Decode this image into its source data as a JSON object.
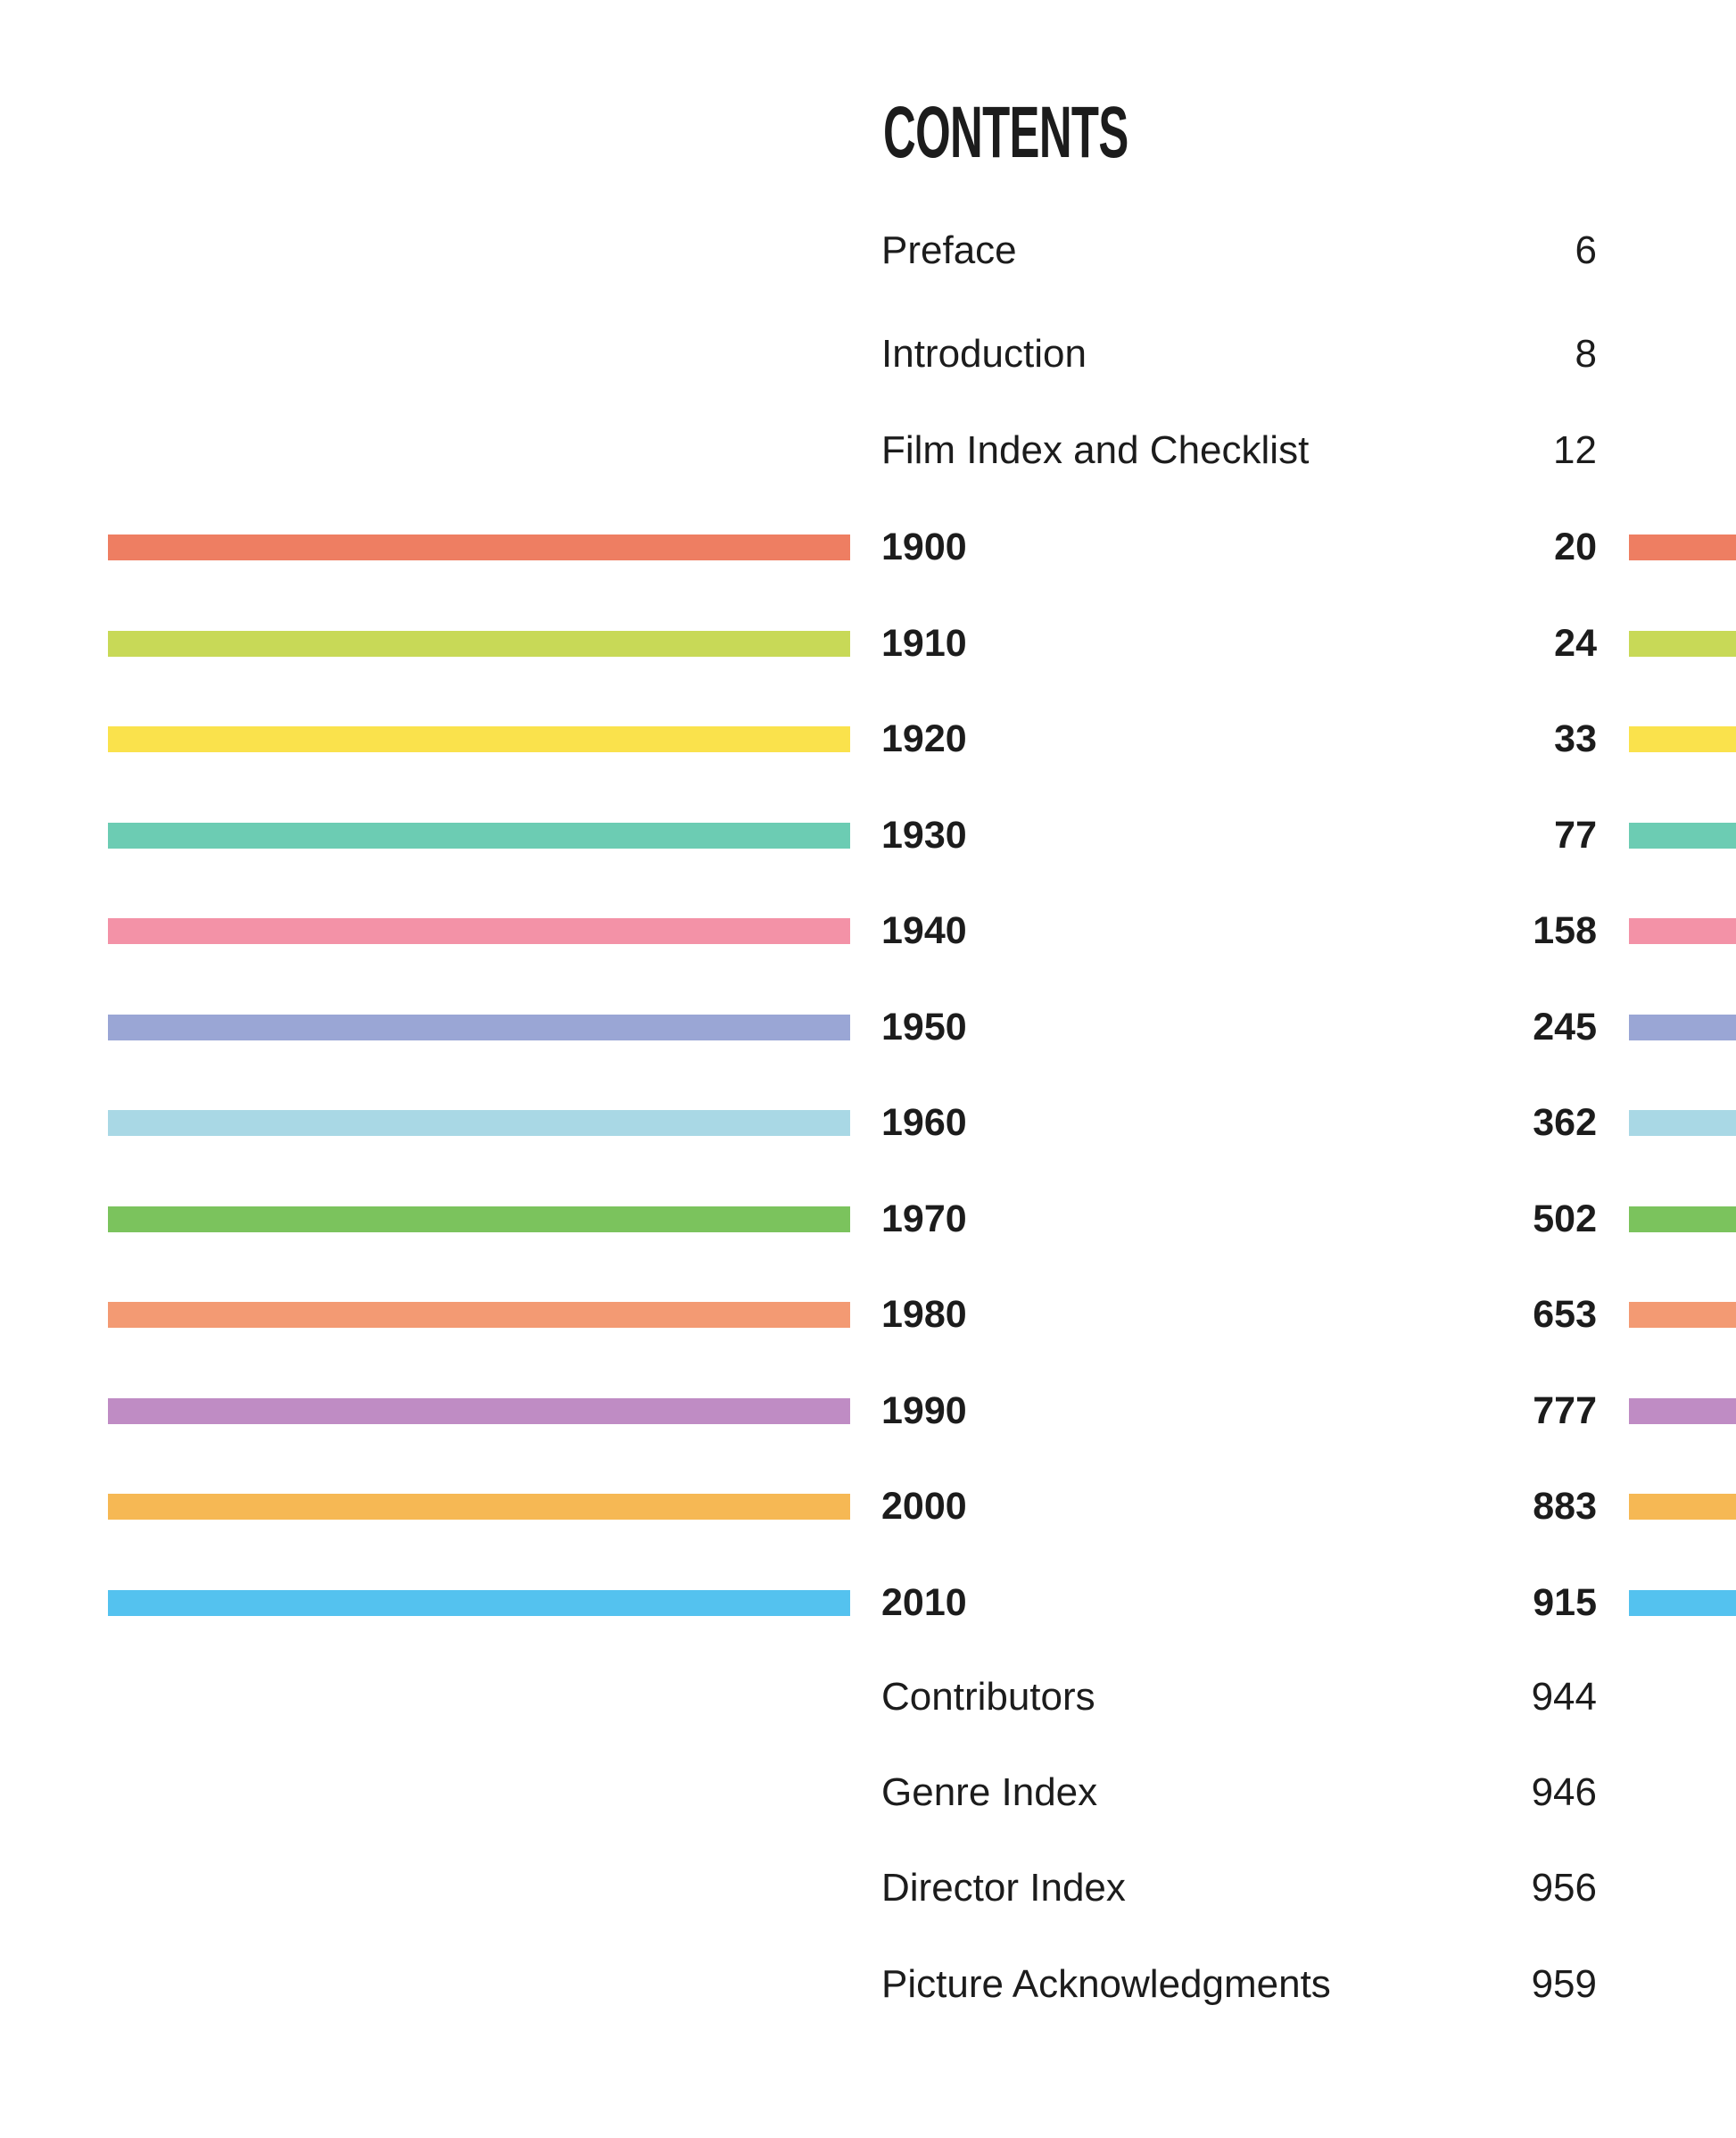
{
  "page": {
    "title": "CONTENTS",
    "background": "#ffffff",
    "text_color": "#1c1c1c"
  },
  "front_matter": [
    {
      "label": "Preface",
      "page": "6"
    },
    {
      "label": "Introduction",
      "page": "8"
    },
    {
      "label": "Film Index and Checklist",
      "page": "12"
    }
  ],
  "decades": [
    {
      "label": "1900",
      "page": "20",
      "color": "#ee7e62"
    },
    {
      "label": "1910",
      "page": "24",
      "color": "#c8d957"
    },
    {
      "label": "1920",
      "page": "33",
      "color": "#fae24c"
    },
    {
      "label": "1930",
      "page": "77",
      "color": "#6cccb3"
    },
    {
      "label": "1940",
      "page": "158",
      "color": "#f392a7"
    },
    {
      "label": "1950",
      "page": "245",
      "color": "#9aa6d5"
    },
    {
      "label": "1960",
      "page": "362",
      "color": "#a9d8e5"
    },
    {
      "label": "1970",
      "page": "502",
      "color": "#7bc35d"
    },
    {
      "label": "1980",
      "page": "653",
      "color": "#f39a73"
    },
    {
      "label": "1990",
      "page": "777",
      "color": "#bf8cc4"
    },
    {
      "label": "2000",
      "page": "883",
      "color": "#f6b854"
    },
    {
      "label": "2010",
      "page": "915",
      "color": "#54c2ef"
    }
  ],
  "back_matter": [
    {
      "label": "Contributors",
      "page": "944"
    },
    {
      "label": "Genre Index",
      "page": "946"
    },
    {
      "label": "Director Index",
      "page": "956"
    },
    {
      "label": "Picture Acknowledgments",
      "page": "959"
    }
  ]
}
